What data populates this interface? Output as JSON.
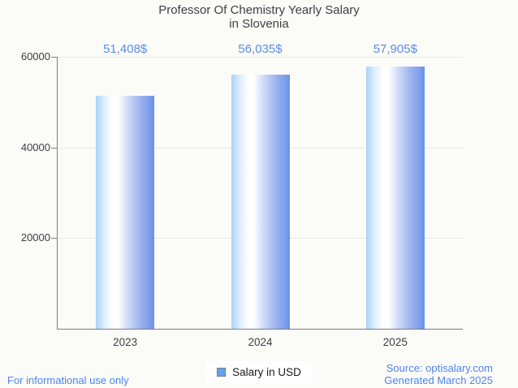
{
  "title": {
    "line1": "Professor Of Chemistry Yearly Salary",
    "line2": "in Slovenia"
  },
  "chart_data": {
    "type": "bar",
    "title": "Professor Of Chemistry Yearly Salary in Slovenia",
    "categories": [
      "2023",
      "2024",
      "2025"
    ],
    "series": [
      {
        "name": "Salary in USD",
        "values": [
          51408,
          56035,
          57905
        ]
      }
    ],
    "values": [
      51408,
      56035,
      57905
    ],
    "value_labels": [
      "51,408$",
      "56,035$",
      "57,905$"
    ],
    "xlabel": "",
    "ylabel": "",
    "ylim": [
      0,
      60000
    ],
    "yticks": [
      20000,
      40000,
      60000
    ],
    "ytick_labels": [
      "20000",
      "40000",
      "60000"
    ],
    "grid": true,
    "legend_position": "bottom-center"
  },
  "legend": {
    "label": "Salary in USD"
  },
  "footer": {
    "left": "For informational use only",
    "source_line1": "Source: optisalary.com",
    "source_line2": "Generated March 2025"
  },
  "colors": {
    "background": "#fbfbf8",
    "title_text": "#3d4144",
    "axis_text": "#3d4144",
    "axis_line": "#7d7d7d",
    "gridline": "#e8e8e6",
    "value_label_text": "#5b8ce9",
    "footer_text": "#4c86ee",
    "bar_gradient_left": "#a9d3f8",
    "bar_gradient_mid": "#ffffff",
    "bar_gradient_right": "#6b92e8",
    "legend_swatch_fill": "#62a3f3",
    "legend_swatch_border": "#7d7d7d"
  }
}
